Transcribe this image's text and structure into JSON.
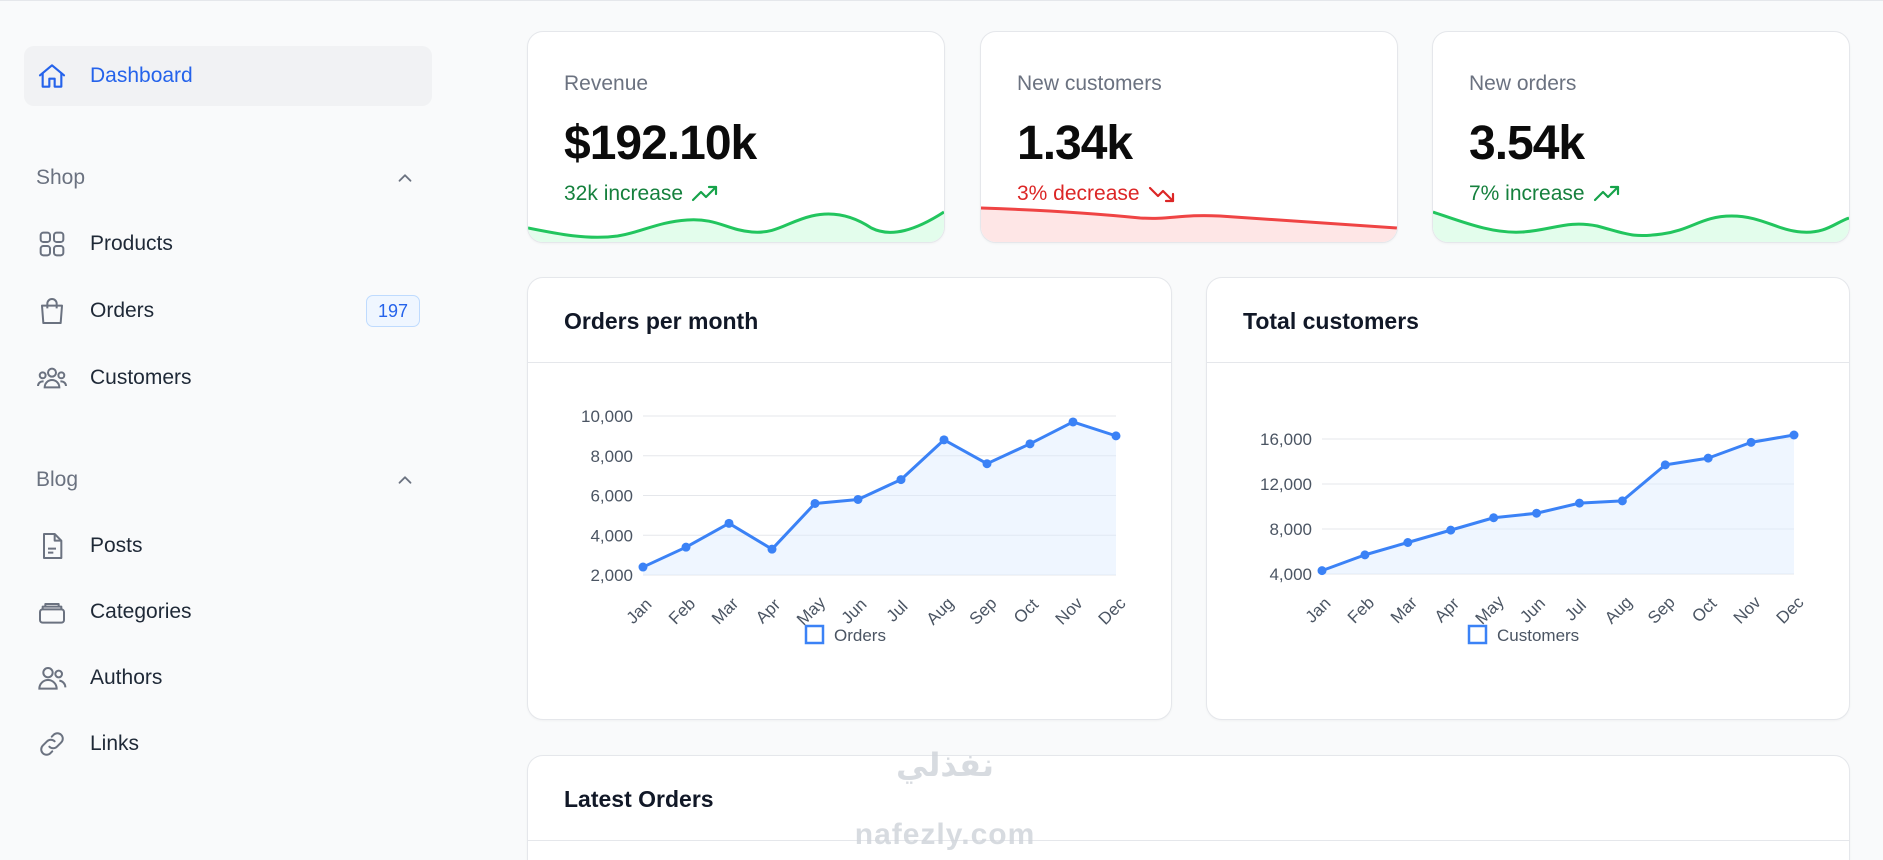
{
  "sidebar": {
    "dashboard": "Dashboard",
    "groups": [
      {
        "label": "Shop",
        "items": [
          {
            "label": "Products",
            "icon": "grid-icon"
          },
          {
            "label": "Orders",
            "icon": "shopping-bag-icon",
            "badge": "197"
          },
          {
            "label": "Customers",
            "icon": "user-group-icon"
          }
        ]
      },
      {
        "label": "Blog",
        "items": [
          {
            "label": "Posts",
            "icon": "document-icon"
          },
          {
            "label": "Categories",
            "icon": "stack-icon"
          },
          {
            "label": "Authors",
            "icon": "users-icon"
          },
          {
            "label": "Links",
            "icon": "link-icon"
          }
        ]
      }
    ]
  },
  "stats": [
    {
      "label": "Revenue",
      "value": "$192.10k",
      "description": "32k increase",
      "trend": "up",
      "color": "#16a34a"
    },
    {
      "label": "New customers",
      "value": "1.34k",
      "description": "3% decrease",
      "trend": "down",
      "color": "#dc2626"
    },
    {
      "label": "New orders",
      "value": "3.54k",
      "description": "7% increase",
      "trend": "up",
      "color": "#16a34a"
    }
  ],
  "charts": {
    "orders": {
      "title": "Orders per month"
    },
    "customers": {
      "title": "Total customers"
    }
  },
  "chart_data": [
    {
      "type": "line",
      "categories": [
        "Jan",
        "Feb",
        "Mar",
        "Apr",
        "May",
        "Jun",
        "Jul",
        "Aug",
        "Sep",
        "Oct",
        "Nov",
        "Dec"
      ],
      "series": [
        {
          "name": "Orders",
          "values": [
            2400,
            3400,
            4600,
            3300,
            5600,
            5800,
            6800,
            8800,
            7600,
            8600,
            9700,
            9000
          ]
        }
      ],
      "ylim": [
        2000,
        10000
      ],
      "yticks": [
        2000,
        4000,
        6000,
        8000,
        10000
      ],
      "ytick_labels": [
        "2,000",
        "4,000",
        "6,000",
        "8,000",
        "10,000"
      ],
      "legend": "bottom",
      "color": "#3b82f6"
    },
    {
      "type": "line",
      "categories": [
        "Jan",
        "Feb",
        "Mar",
        "Apr",
        "May",
        "Jun",
        "Jul",
        "Aug",
        "Sep",
        "Oct",
        "Nov",
        "Dec"
      ],
      "series": [
        {
          "name": "Customers",
          "values": [
            4300,
            5700,
            6800,
            7900,
            9000,
            9400,
            10300,
            10500,
            13700,
            14300,
            15700,
            17400
          ]
        }
      ],
      "ylim": [
        4000,
        16000
      ],
      "yticks": [
        4000,
        8000,
        12000,
        16000
      ],
      "ytick_labels": [
        "4,000",
        "8,000",
        "12,000",
        "16,000"
      ],
      "legend": "bottom",
      "color": "#3b82f6"
    }
  ],
  "latest_orders": {
    "title": "Latest Orders"
  },
  "watermark": {
    "arabic": "نفذلي",
    "latin": "nafezly.com"
  }
}
